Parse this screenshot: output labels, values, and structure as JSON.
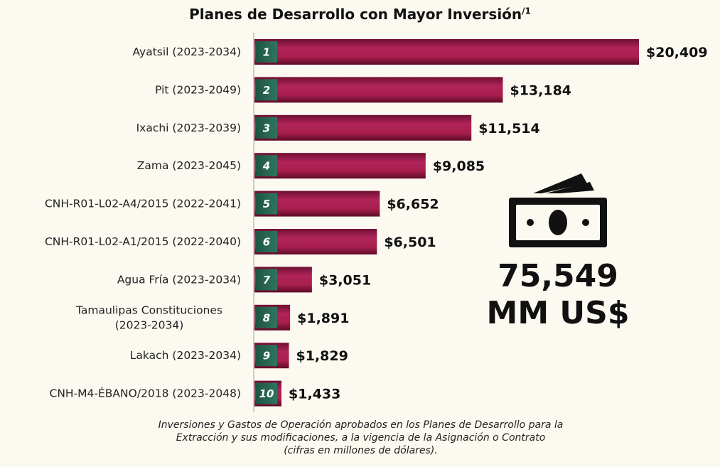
{
  "chart_data": {
    "type": "bar",
    "orientation": "horizontal",
    "title": "Planes de Desarrollo con Mayor Inversión",
    "title_superscript": "/1",
    "categories": [
      "Ayatsil (2023-2034)",
      "Pit (2023-2049)",
      "Ixachi (2023-2039)",
      "Zama (2023-2045)",
      "CNH-R01-L02-A4/2015 (2022-2041)",
      "CNH-R01-L02-A1/2015 (2022-2040)",
      "Agua Fría (2023-2034)",
      "Tamaulipas Constituciones (2023-2034)",
      "Lakach (2023-2034)",
      "CNH-M4-ÉBANO/2018 (2023-2048)"
    ],
    "category_lines": [
      [
        "Ayatsil (2023-2034)"
      ],
      [
        "Pit (2023-2049)"
      ],
      [
        "Ixachi (2023-2039)"
      ],
      [
        "Zama (2023-2045)"
      ],
      [
        "CNH-R01-L02-A4/2015 (2022-2041)"
      ],
      [
        "CNH-R01-L02-A1/2015 (2022-2040)"
      ],
      [
        "Agua Fría (2023-2034)"
      ],
      [
        "Tamaulipas Constituciones",
        "(2023-2034)"
      ],
      [
        "Lakach (2023-2034)"
      ],
      [
        "CNH-M4-ÉBANO/2018 (2023-2048)"
      ]
    ],
    "ranks": [
      "1",
      "2",
      "3",
      "4",
      "5",
      "6",
      "7",
      "8",
      "9",
      "10"
    ],
    "values": [
      20409,
      13184,
      11514,
      9085,
      6652,
      6501,
      3051,
      1891,
      1829,
      1433
    ],
    "value_labels": [
      "$20,409",
      "$13,184",
      "$11,514",
      "$9,085",
      "$6,652",
      "$6,501",
      "$3,051",
      "$1,891",
      "$1,829",
      "$1,433"
    ],
    "xlim": [
      0,
      20409
    ],
    "grid": false,
    "legend": "none"
  },
  "summary": {
    "icon": "money-bill-icon",
    "total_value": "75,549",
    "total_unit": "MM US$"
  },
  "footnote": {
    "lines": [
      "Inversiones y Gastos de Operación aprobados en los Planes de Desarrollo para la",
      "Extracción y sus modificaciones, a la vigencia de la Asignación o Contrato",
      "(cifras en millones de dólares)."
    ]
  },
  "colors": {
    "bar": "#a81f4e",
    "bar_dark": "#6f0f31",
    "rank_box": "#2b6a56",
    "axis": "#bdbdbd",
    "background": "#fbf9f0"
  }
}
